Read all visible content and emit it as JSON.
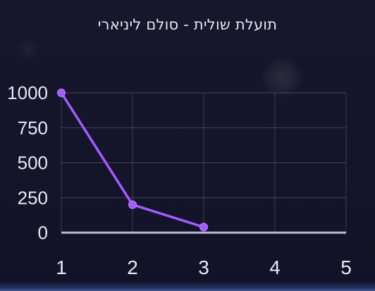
{
  "chart_data": {
    "type": "line",
    "title": "תועלת שולית - סולם ליניארי",
    "x": [
      1,
      2,
      3
    ],
    "series": [
      {
        "values": [
          1000,
          200,
          40
        ]
      }
    ],
    "xticks": [
      1,
      2,
      3,
      4,
      5
    ],
    "yticks": [
      0,
      250,
      500,
      750,
      1000
    ],
    "xlim": [
      1,
      5
    ],
    "ylim": [
      0,
      1000
    ],
    "grid": true,
    "colors": {
      "line": "#a35cff",
      "axis": "#bcbcd6",
      "grid": "#6b6b86",
      "tick_text": "#e8e8f5"
    }
  }
}
